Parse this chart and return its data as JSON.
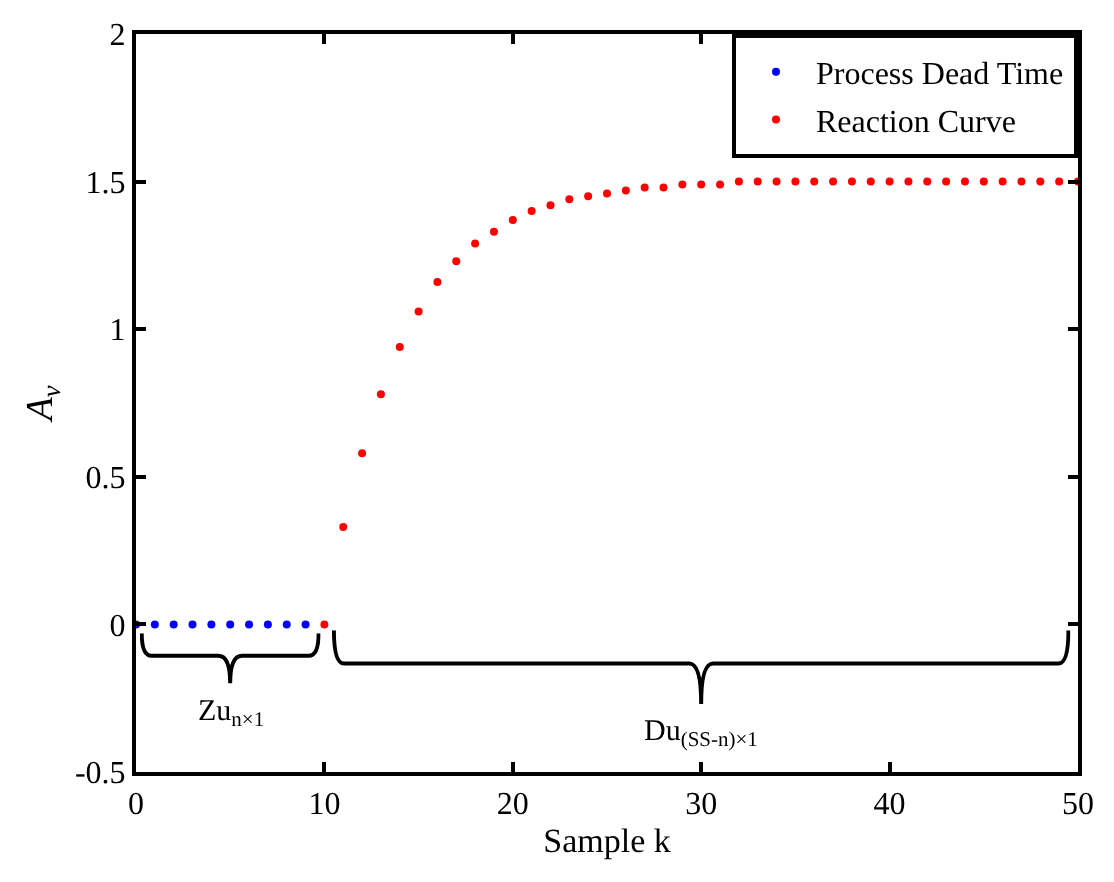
{
  "chart_data": {
    "type": "scatter",
    "xlabel": "Sample k",
    "ylabel": "A$_{v}$",
    "xlim": [
      0,
      50
    ],
    "ylim": [
      -0.5,
      2
    ],
    "xticks": [
      0,
      10,
      20,
      30,
      40,
      50
    ],
    "yticks": [
      -0.5,
      0,
      0.5,
      1,
      1.5,
      2
    ],
    "legend": "top right",
    "marker": "circle",
    "series": [
      {
        "name": "Process Dead Time",
        "color": "#0000ff",
        "x": [
          0,
          1,
          2,
          3,
          4,
          5,
          6,
          7,
          8,
          9
        ],
        "values": [
          0,
          0,
          0,
          0,
          0,
          0,
          0,
          0,
          0,
          0
        ]
      },
      {
        "name": "Reaction Curve",
        "color": "#ff0000",
        "x": [
          10,
          11,
          12,
          13,
          14,
          15,
          16,
          17,
          18,
          19,
          20,
          21,
          22,
          23,
          24,
          25,
          26,
          27,
          28,
          29,
          30,
          31,
          32,
          33,
          34,
          35,
          36,
          37,
          38,
          39,
          40,
          41,
          42,
          43,
          44,
          45,
          46,
          47,
          48,
          49,
          50
        ],
        "values": [
          0,
          0.33,
          0.58,
          0.78,
          0.94,
          1.06,
          1.16,
          1.23,
          1.29,
          1.33,
          1.37,
          1.4,
          1.42,
          1.44,
          1.45,
          1.46,
          1.47,
          1.48,
          1.48,
          1.49,
          1.49,
          1.49,
          1.5,
          1.5,
          1.5,
          1.5,
          1.5,
          1.5,
          1.5,
          1.5,
          1.5,
          1.5,
          1.5,
          1.5,
          1.5,
          1.5,
          1.5,
          1.5,
          1.5,
          1.5,
          1.5
        ]
      }
    ],
    "annotations": [
      "Zu$_{n×1}$",
      "Du$_{(SS-n)×1}$"
    ]
  }
}
